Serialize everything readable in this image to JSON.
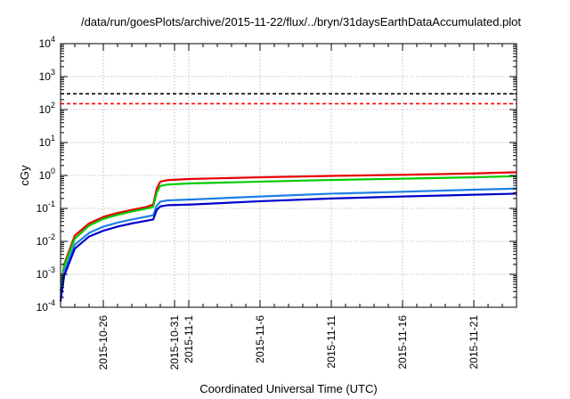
{
  "chart_data": {
    "type": "line",
    "title": "/data/run/goesPlots/archive/2015-11-22/flux/../bryn/31daysEarthDataAccumulated.plot",
    "xlabel": "Coordinated Universal Time (UTC)",
    "ylabel": "cGy",
    "yscale": "log",
    "ylim": [
      0.0001,
      10000
    ],
    "xlim": [
      "2015-10-23",
      "2015-11-24"
    ],
    "grid": true,
    "legend": "none",
    "y_ticks": [
      {
        "base": "10",
        "exp": "-4"
      },
      {
        "base": "10",
        "exp": "-3"
      },
      {
        "base": "10",
        "exp": "-2"
      },
      {
        "base": "10",
        "exp": "-1"
      },
      {
        "base": "10",
        "exp": "0"
      },
      {
        "base": "10",
        "exp": "1"
      },
      {
        "base": "10",
        "exp": "2"
      },
      {
        "base": "10",
        "exp": "3"
      },
      {
        "base": "10",
        "exp": "4"
      }
    ],
    "x_ticks": [
      {
        "date": "2015-10-26",
        "label": "2015-10-26"
      },
      {
        "date": "2015-10-31",
        "label": "2015-10-31"
      },
      {
        "date": "2015-11-01",
        "label": "2015-11-1"
      },
      {
        "date": "2015-11-06",
        "label": "2015-11-6"
      },
      {
        "date": "2015-11-11",
        "label": "2015-11-11"
      },
      {
        "date": "2015-11-16",
        "label": "2015-11-16"
      },
      {
        "date": "2015-11-21",
        "label": "2015-11-21"
      }
    ],
    "thresholds": [
      {
        "value": 300,
        "color": "#000000"
      },
      {
        "value": 150,
        "color": "#ff0000"
      }
    ],
    "series": [
      {
        "color": "#e60000",
        "x": [
          "2015-10-23 00:00",
          "2015-10-23 06:00",
          "2015-10-24 00:00",
          "2015-10-25 00:00",
          "2015-10-26 00:00",
          "2015-10-27 00:00",
          "2015-10-28 00:00",
          "2015-10-29 00:00",
          "2015-10-29 12:00",
          "2015-10-29 18:00",
          "2015-10-30 00:00",
          "2015-10-30 12:00",
          "2015-11-01 00:00",
          "2015-11-06 00:00",
          "2015-11-11 00:00",
          "2015-11-16 00:00",
          "2015-11-21 00:00",
          "2015-11-24 00:00"
        ],
        "values": [
          0.0003,
          0.002,
          0.015,
          0.035,
          0.055,
          0.073,
          0.09,
          0.11,
          0.13,
          0.4,
          0.65,
          0.72,
          0.78,
          0.88,
          0.97,
          1.05,
          1.15,
          1.25
        ]
      },
      {
        "color": "#00cc00",
        "x": [
          "2015-10-23 00:00",
          "2015-10-23 06:00",
          "2015-10-24 00:00",
          "2015-10-25 00:00",
          "2015-10-26 00:00",
          "2015-10-27 00:00",
          "2015-10-28 00:00",
          "2015-10-29 00:00",
          "2015-10-29 12:00",
          "2015-10-29 18:00",
          "2015-10-30 00:00",
          "2015-10-30 12:00",
          "2015-11-01 00:00",
          "2015-11-06 00:00",
          "2015-11-11 00:00",
          "2015-11-16 00:00",
          "2015-11-21 00:00",
          "2015-11-24 00:00"
        ],
        "values": [
          0.0003,
          0.0018,
          0.012,
          0.03,
          0.048,
          0.064,
          0.08,
          0.098,
          0.11,
          0.3,
          0.48,
          0.53,
          0.57,
          0.65,
          0.73,
          0.8,
          0.88,
          0.95
        ]
      },
      {
        "color": "#1e7ee6",
        "x": [
          "2015-10-23 00:00",
          "2015-10-23 06:00",
          "2015-10-24 00:00",
          "2015-10-25 00:00",
          "2015-10-26 00:00",
          "2015-10-27 00:00",
          "2015-10-28 00:00",
          "2015-10-29 00:00",
          "2015-10-29 12:00",
          "2015-10-29 18:00",
          "2015-10-30 00:00",
          "2015-10-30 12:00",
          "2015-11-01 00:00",
          "2015-11-06 00:00",
          "2015-11-11 00:00",
          "2015-11-16 00:00",
          "2015-11-21 00:00",
          "2015-11-24 00:00"
        ],
        "values": [
          0.0002,
          0.0012,
          0.008,
          0.018,
          0.028,
          0.037,
          0.046,
          0.056,
          0.062,
          0.12,
          0.16,
          0.175,
          0.185,
          0.23,
          0.28,
          0.32,
          0.37,
          0.4
        ]
      },
      {
        "color": "#0000cc",
        "x": [
          "2015-10-23 00:00",
          "2015-10-23 06:00",
          "2015-10-24 00:00",
          "2015-10-25 00:00",
          "2015-10-26 00:00",
          "2015-10-27 00:00",
          "2015-10-28 00:00",
          "2015-10-29 00:00",
          "2015-10-29 12:00",
          "2015-10-29 18:00",
          "2015-10-30 00:00",
          "2015-10-30 12:00",
          "2015-11-01 00:00",
          "2015-11-06 00:00",
          "2015-11-11 00:00",
          "2015-11-16 00:00",
          "2015-11-21 00:00",
          "2015-11-24 00:00"
        ],
        "values": [
          0.00015,
          0.0009,
          0.006,
          0.014,
          0.021,
          0.028,
          0.035,
          0.042,
          0.046,
          0.09,
          0.115,
          0.125,
          0.13,
          0.165,
          0.2,
          0.23,
          0.26,
          0.28
        ]
      }
    ]
  }
}
